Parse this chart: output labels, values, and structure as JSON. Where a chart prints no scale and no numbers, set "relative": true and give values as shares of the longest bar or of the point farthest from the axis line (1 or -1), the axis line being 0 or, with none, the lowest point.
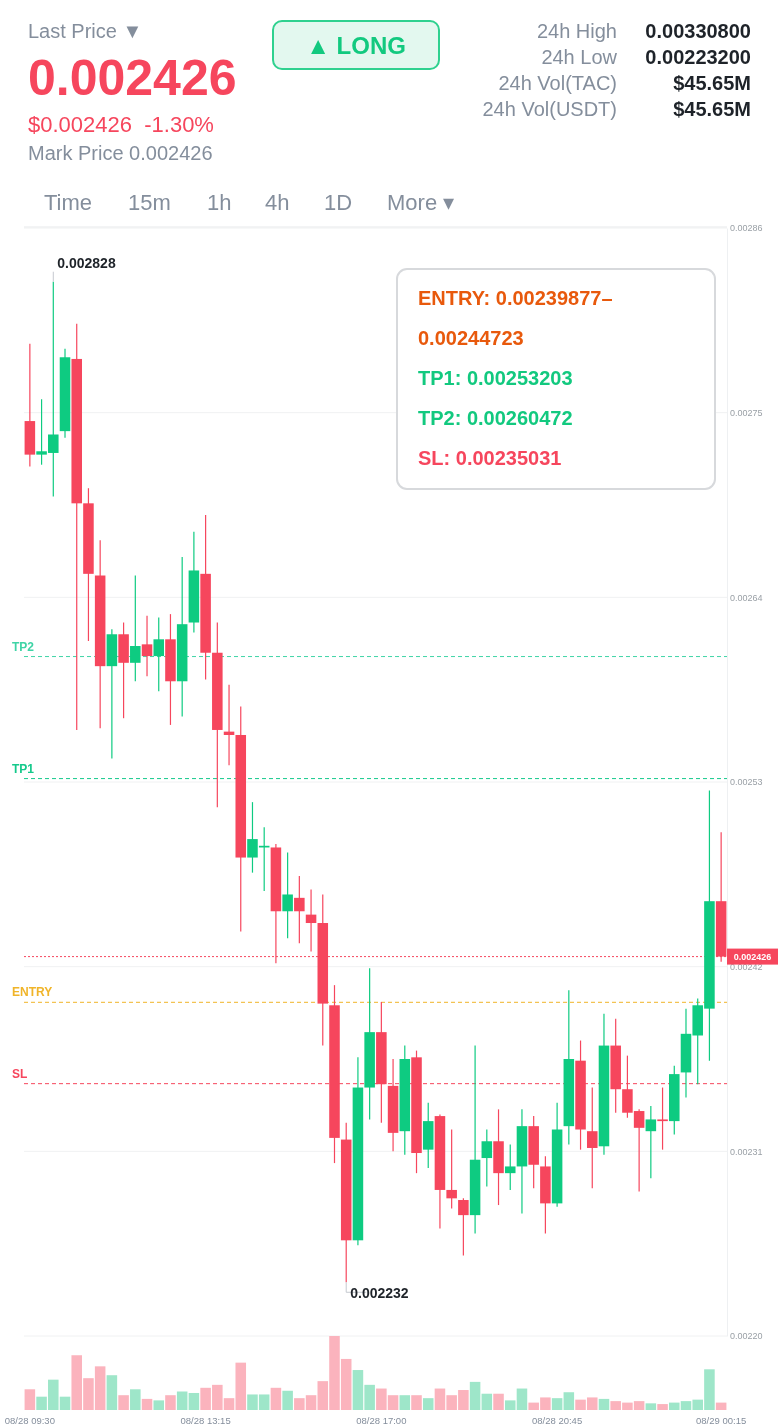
{
  "chart_data": [
    {
      "type": "other",
      "annotations": [
        "Last Price ▼",
        "0.002426",
        "$0.002426  -1.30%",
        "Mark Price 0.002426",
        "▲ LONG",
        "24h High",
        "0.00330800",
        "24h Low",
        "0.00223200",
        "24h Vol(TAC)",
        "$45.65M",
        "24h Vol(USDT)",
        "$45.65M",
        "Time",
        "15m",
        "1h",
        "4h",
        "1D",
        "More ▾"
      ]
    },
    {
      "type": "candlestick",
      "categories": [
        "08/28 09:30",
        null,
        null,
        null,
        null,
        null,
        null,
        null,
        null,
        null,
        null,
        null,
        null,
        null,
        null,
        "08/28 13:15",
        null,
        null,
        null,
        null,
        null,
        null,
        null,
        null,
        null,
        null,
        null,
        null,
        null,
        null,
        "08/28 17:00",
        null,
        null,
        null,
        null,
        null,
        null,
        null,
        null,
        null,
        null,
        null,
        null,
        null,
        null,
        "08/28 20:45",
        null,
        null,
        null,
        null,
        null,
        null,
        null,
        null,
        null,
        null,
        null,
        null,
        null,
        "08/29 00:15"
      ],
      "ohlc": [
        [
          0.002745,
          0.002791,
          0.002718,
          0.002725
        ],
        [
          0.002725,
          0.002758,
          0.002719,
          0.002727
        ],
        [
          0.002726,
          0.002828,
          0.0027,
          0.002737
        ],
        [
          0.002739,
          0.002788,
          0.002735,
          0.002783
        ],
        [
          0.002782,
          0.002803,
          0.002561,
          0.002696
        ],
        [
          0.002696,
          0.002705,
          0.002614,
          0.002654
        ],
        [
          0.002653,
          0.002674,
          0.002562,
          0.002599
        ],
        [
          0.002599,
          0.002621,
          0.002544,
          0.002618
        ],
        [
          0.002618,
          0.002625,
          0.002568,
          0.002601
        ],
        [
          0.002601,
          0.002653,
          0.00259,
          0.002611
        ],
        [
          0.002612,
          0.002629,
          0.002593,
          0.002605
        ],
        [
          0.002605,
          0.002628,
          0.002584,
          0.002615
        ],
        [
          0.002615,
          0.00263,
          0.002564,
          0.00259
        ],
        [
          0.00259,
          0.002664,
          0.002569,
          0.002624
        ],
        [
          0.002625,
          0.002679,
          0.002619,
          0.002656
        ],
        [
          0.002654,
          0.002689,
          0.002591,
          0.002607
        ],
        [
          0.002607,
          0.002625,
          0.002515,
          0.002561
        ],
        [
          0.00256,
          0.002588,
          0.00254,
          0.002558
        ],
        [
          0.002558,
          0.002575,
          0.002441,
          0.002485
        ],
        [
          0.002485,
          0.002518,
          0.002476,
          0.002496
        ],
        [
          0.002491,
          0.002503,
          0.002465,
          0.002492
        ],
        [
          0.002491,
          0.002493,
          0.002422,
          0.002453
        ],
        [
          0.002453,
          0.002488,
          0.002437,
          0.002463
        ],
        [
          0.002461,
          0.002474,
          0.002434,
          0.002453
        ],
        [
          0.002451,
          0.002466,
          0.002429,
          0.002446
        ],
        [
          0.002446,
          0.002463,
          0.002373,
          0.002398
        ],
        [
          0.002397,
          0.002409,
          0.002303,
          0.002318
        ],
        [
          0.002317,
          0.002327,
          0.002232,
          0.002257
        ],
        [
          0.002257,
          0.002366,
          0.002254,
          0.002348
        ],
        [
          0.002348,
          0.002419,
          0.002329,
          0.002381
        ],
        [
          0.002381,
          0.002399,
          0.002327,
          0.00235
        ],
        [
          0.002349,
          0.002365,
          0.00231,
          0.002321
        ],
        [
          0.002322,
          0.002373,
          0.002308,
          0.002365
        ],
        [
          0.002366,
          0.00237,
          0.002297,
          0.002309
        ],
        [
          0.002311,
          0.002339,
          0.0023,
          0.002328
        ],
        [
          0.002331,
          0.002332,
          0.002264,
          0.002287
        ],
        [
          0.002287,
          0.002323,
          0.002276,
          0.002282
        ],
        [
          0.002281,
          0.002282,
          0.002248,
          0.002272
        ],
        [
          0.002272,
          0.002373,
          0.002261,
          0.002305
        ],
        [
          0.002306,
          0.002323,
          0.002289,
          0.002316
        ],
        [
          0.002316,
          0.002335,
          0.002278,
          0.002297
        ],
        [
          0.002297,
          0.002314,
          0.002287,
          0.002301
        ],
        [
          0.002301,
          0.002335,
          0.002273,
          0.002325
        ],
        [
          0.002325,
          0.002331,
          0.002288,
          0.002302
        ],
        [
          0.002301,
          0.002307,
          0.002261,
          0.002279
        ],
        [
          0.002279,
          0.002339,
          0.002277,
          0.002323
        ],
        [
          0.002325,
          0.002406,
          0.002314,
          0.002365
        ],
        [
          0.002364,
          0.002376,
          0.002311,
          0.002323
        ],
        [
          0.002322,
          0.002348,
          0.002288,
          0.002312
        ],
        [
          0.002313,
          0.002392,
          0.002308,
          0.002373
        ],
        [
          0.002373,
          0.002389,
          0.002333,
          0.002347
        ],
        [
          0.002347,
          0.002367,
          0.00233,
          0.002333
        ],
        [
          0.002334,
          0.002335,
          0.002286,
          0.002324
        ],
        [
          0.002322,
          0.002337,
          0.002294,
          0.002329
        ],
        [
          0.002329,
          0.002348,
          0.002311,
          0.002328
        ],
        [
          0.002328,
          0.002361,
          0.00232,
          0.002356
        ],
        [
          0.002357,
          0.002395,
          0.002342,
          0.00238
        ],
        [
          0.002379,
          0.002401,
          0.00235,
          0.002397
        ],
        [
          0.002395,
          0.002525,
          0.002364,
          0.002459
        ],
        [
          0.002459,
          0.0025,
          0.002423,
          0.002426
        ]
      ],
      "colors": [
        "#f6465d",
        "#0ecb81",
        "#0ecb81",
        "#0ecb81",
        "#f6465d",
        "#f6465d",
        "#f6465d",
        "#0ecb81",
        "#f6465d",
        "#0ecb81",
        "#f6465d",
        "#0ecb81",
        "#f6465d",
        "#0ecb81",
        "#0ecb81",
        "#f6465d",
        "#f6465d",
        "#f6465d",
        "#f6465d",
        "#0ecb81",
        "#0ecb81",
        "#f6465d",
        "#0ecb81",
        "#f6465d",
        "#f6465d",
        "#f6465d",
        "#f6465d",
        "#f6465d",
        "#0ecb81",
        "#0ecb81",
        "#f6465d",
        "#f6465d",
        "#0ecb81",
        "#f6465d",
        "#0ecb81",
        "#f6465d",
        "#f6465d",
        "#f6465d",
        "#0ecb81",
        "#0ecb81",
        "#f6465d",
        "#0ecb81",
        "#0ecb81",
        "#f6465d",
        "#f6465d",
        "#0ecb81",
        "#0ecb81",
        "#f6465d",
        "#f6465d",
        "#0ecb81",
        "#f6465d",
        "#f6465d",
        "#f6465d",
        "#0ecb81",
        "#f6465d",
        "#0ecb81",
        "#0ecb81",
        "#0ecb81",
        "#0ecb81",
        "#f6465d"
      ],
      "ylim": [
        0.0022,
        0.00286
      ],
      "yticks": [
        {
          "value": 0.0022,
          "label": "0.00220"
        },
        0.00231,
        0.00242,
        0.00253,
        0.00264,
        0.00275,
        0.00286
      ],
      "grid": "y",
      "ref_lines": [
        {
          "axis": "y",
          "value": 0.00260472,
          "label": "TP2",
          "color": "#3fd4a6",
          "line_style": "dashed"
        },
        {
          "axis": "y",
          "value": 0.00253203,
          "label": "TP1",
          "color": "#14c98b",
          "line_style": "dashed"
        },
        {
          "axis": "y",
          "value": 0.00239877,
          "label": "ENTRY",
          "color": "#f0b429",
          "line_style": "dashed"
        },
        {
          "axis": "y",
          "value": 0.00235031,
          "label": "SL",
          "color": "#f6465d",
          "line_style": "dashed"
        },
        {
          "axis": "y",
          "value": 0.002426,
          "label": "0.002426",
          "color": "#f6465d",
          "line_style": "dotted"
        }
      ],
      "annotations": [
        "ENTRY: 0.00239877–0.00244723",
        "TP1: 0.00253203",
        "TP2: 0.00260472",
        "SL: 0.00235031",
        "0.002828",
        "0.002232"
      ]
    },
    {
      "type": "bar",
      "relative": true,
      "categories": [
        null,
        null,
        null,
        null,
        null,
        null,
        null,
        null,
        null,
        null,
        null,
        null,
        null,
        null,
        null,
        null,
        null,
        null,
        null,
        null,
        null,
        null,
        null,
        null,
        null,
        null,
        null,
        null,
        null,
        null,
        null,
        null,
        null,
        null,
        null,
        null,
        null,
        null,
        null,
        null,
        null,
        null,
        null,
        null,
        null,
        null,
        null,
        null,
        null,
        null,
        null,
        null,
        null,
        null,
        null,
        null,
        null,
        null,
        null,
        null
      ],
      "values": [
        0.28,
        0.18,
        0.41,
        0.18,
        0.74,
        0.43,
        0.59,
        0.47,
        0.2,
        0.28,
        0.15,
        0.13,
        0.2,
        0.25,
        0.23,
        0.3,
        0.34,
        0.16,
        0.64,
        0.21,
        0.21,
        0.3,
        0.26,
        0.16,
        0.2,
        0.39,
        1,
        0.69,
        0.54,
        0.34,
        0.29,
        0.2,
        0.2,
        0.2,
        0.16,
        0.29,
        0.2,
        0.27,
        0.38,
        0.22,
        0.22,
        0.13,
        0.29,
        0.1,
        0.17,
        0.16,
        0.24,
        0.14,
        0.17,
        0.15,
        0.12,
        0.1,
        0.12,
        0.09,
        0.08,
        0.1,
        0.12,
        0.14,
        0.55,
        0.1
      ],
      "colors": [
        "#fbb3bd",
        "#9ee6c9",
        "#9ee6c9",
        "#9ee6c9",
        "#fbb3bd",
        "#fbb3bd",
        "#fbb3bd",
        "#9ee6c9",
        "#fbb3bd",
        "#9ee6c9",
        "#fbb3bd",
        "#9ee6c9",
        "#fbb3bd",
        "#9ee6c9",
        "#9ee6c9",
        "#fbb3bd",
        "#fbb3bd",
        "#fbb3bd",
        "#fbb3bd",
        "#9ee6c9",
        "#9ee6c9",
        "#fbb3bd",
        "#9ee6c9",
        "#fbb3bd",
        "#fbb3bd",
        "#fbb3bd",
        "#fbb3bd",
        "#fbb3bd",
        "#9ee6c9",
        "#9ee6c9",
        "#fbb3bd",
        "#fbb3bd",
        "#9ee6c9",
        "#fbb3bd",
        "#9ee6c9",
        "#fbb3bd",
        "#fbb3bd",
        "#fbb3bd",
        "#9ee6c9",
        "#9ee6c9",
        "#fbb3bd",
        "#9ee6c9",
        "#9ee6c9",
        "#fbb3bd",
        "#fbb3bd",
        "#9ee6c9",
        "#9ee6c9",
        "#fbb3bd",
        "#fbb3bd",
        "#9ee6c9",
        "#fbb3bd",
        "#fbb3bd",
        "#fbb3bd",
        "#9ee6c9",
        "#fbb3bd",
        "#9ee6c9",
        "#9ee6c9",
        "#9ee6c9",
        "#9ee6c9",
        "#fbb3bd"
      ]
    }
  ]
}
